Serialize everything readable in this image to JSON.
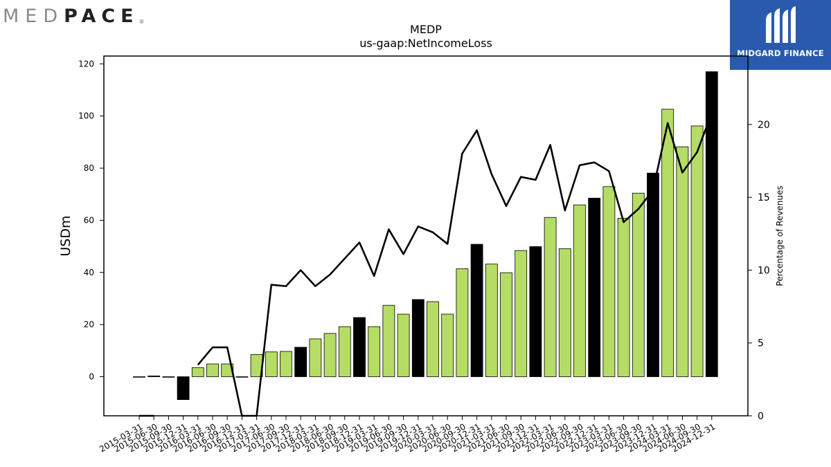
{
  "logos": {
    "left": {
      "part1": "MED",
      "part2": "PACE",
      "registered": "®"
    },
    "right": {
      "name": "MIDGARD FINANCE"
    }
  },
  "colors": {
    "bar_green": "#b5dc65",
    "bar_black": "#000000",
    "line": "#000000",
    "logo_blue": "#2a5aad"
  },
  "chart_data": {
    "type": "bar",
    "title": "MEDP",
    "subtitle": "us-gaap:NetIncomeLoss",
    "ylabel": "USDm",
    "y2label": "Percentage of Revenues",
    "ylim": [
      -15,
      123
    ],
    "y2lim": [
      0,
      24.7
    ],
    "yticks": [
      0,
      20,
      40,
      60,
      80,
      100,
      120
    ],
    "y2ticks": [
      0,
      5,
      10,
      15,
      20
    ],
    "categories": [
      "2015-03-31",
      "2015-06-30",
      "2015-09-30",
      "2015-12-31",
      "2016-03-31",
      "2016-06-30",
      "2016-09-30",
      "2016-12-31",
      "2017-03-31",
      "2017-06-30",
      "2017-09-30",
      "2017-12-31",
      "2018-03-31",
      "2018-06-30",
      "2018-09-30",
      "2018-12-31",
      "2019-03-31",
      "2019-06-30",
      "2019-09-30",
      "2019-12-31",
      "2020-03-31",
      "2020-06-30",
      "2020-09-30",
      "2020-12-31",
      "2021-03-31",
      "2021-06-30",
      "2021-09-30",
      "2021-12-31",
      "2022-03-31",
      "2022-06-30",
      "2022-09-30",
      "2022-12-31",
      "2023-03-31",
      "2023-06-30",
      "2023-09-30",
      "2023-12-31",
      "2024-03-31",
      "2024-06-30",
      "2024-09-30",
      "2024-12-31"
    ],
    "series": [
      {
        "type": "bar",
        "values": [
          -0.1,
          0.3,
          -0.1,
          -8.8,
          3.5,
          4.9,
          4.9,
          -0.1,
          8.5,
          9.5,
          9.7,
          11.3,
          14.5,
          16.6,
          19.2,
          22.7,
          19.2,
          27.4,
          24.0,
          29.6,
          28.8,
          24.0,
          41.4,
          50.8,
          43.2,
          39.9,
          48.4,
          49.9,
          61.1,
          49.1,
          65.9,
          68.5,
          72.9,
          60.8,
          70.4,
          78.1,
          102.6,
          88.2,
          96.2,
          117.0
        ],
        "kind": [
          "g",
          "k",
          "g",
          "k",
          "g",
          "g",
          "g",
          "k",
          "g",
          "g",
          "g",
          "k",
          "g",
          "g",
          "g",
          "k",
          "g",
          "g",
          "g",
          "k",
          "g",
          "g",
          "g",
          "k",
          "g",
          "g",
          "g",
          "k",
          "g",
          "g",
          "g",
          "k",
          "g",
          "g",
          "g",
          "k",
          "g",
          "g",
          "g",
          "k"
        ]
      },
      {
        "type": "line",
        "axis": "right",
        "values": [
          0,
          0,
          null,
          null,
          3.5,
          4.7,
          4.7,
          0,
          0,
          9.0,
          8.9,
          10.0,
          8.9,
          9.7,
          10.8,
          11.9,
          9.6,
          12.8,
          11.1,
          13.0,
          12.6,
          11.8,
          18.0,
          19.6,
          16.6,
          14.4,
          16.4,
          16.2,
          18.6,
          14.1,
          17.2,
          17.4,
          16.8,
          13.3,
          14.2,
          15.5,
          20.1,
          16.7,
          18.1,
          20.8
        ]
      }
    ],
    "grid": false
  }
}
